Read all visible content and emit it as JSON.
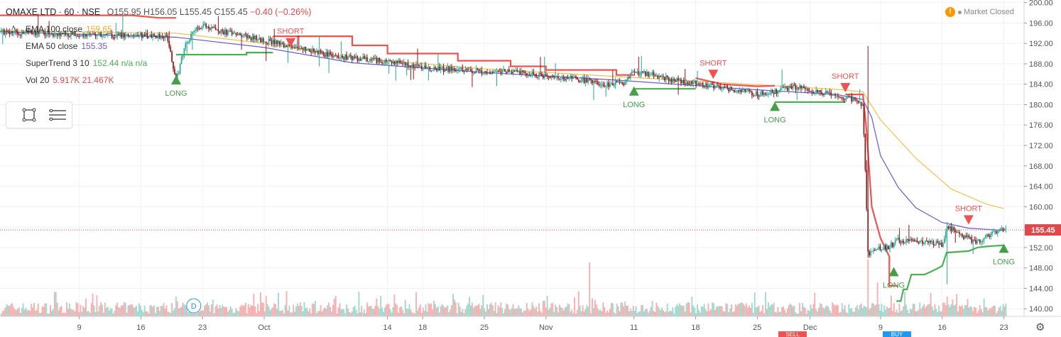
{
  "header": {
    "symbol": "OMAXE LTD · 60 · NSE",
    "ohlc": "O155.95 H156.05 L155.45 C155.45",
    "change": "−0.40 (−0.26%)"
  },
  "indicators": [
    {
      "name": "EMA 100 close",
      "value": "159.65",
      "color": "#f5a623"
    },
    {
      "name": "EMA 50 close",
      "value": "155.35",
      "color": "#6a5acd"
    },
    {
      "name": "SuperTrend 3 10",
      "value": "152.44 n/a n/a",
      "color": "#4caf50"
    },
    {
      "name": "Vol 20",
      "value": "5.917K 21.467K",
      "color": "#e0484b"
    }
  ],
  "market_status": {
    "icon": "!",
    "label": "Market Closed"
  },
  "bottom_tags": {
    "sell": "SELL",
    "buy": "BUY"
  },
  "colors": {
    "up": "#26a69a",
    "down": "#8b1a1a",
    "supertrend_up": "#4caf50",
    "supertrend_down": "#ef5350",
    "ema100": "#f5c04a",
    "ema50": "#6a5acd",
    "vol_up": "#8fd3c8",
    "vol_down": "#f5a3a3",
    "last_price_bg": "#e0484b"
  },
  "chart_data": {
    "type": "candlestick",
    "symbol": "OMAXE LTD",
    "interval": "60",
    "exchange": "NSE",
    "ylim": [
      138.5,
      200.5
    ],
    "y_ticks": [
      "200.00",
      "196.00",
      "192.00",
      "188.00",
      "184.00",
      "180.00",
      "176.00",
      "172.00",
      "168.00",
      "164.00",
      "160.00",
      "156.00",
      "152.00",
      "148.00",
      "144.00",
      "140.00"
    ],
    "x_ticks": [
      {
        "label": "9",
        "x": 9
      },
      {
        "label": "16",
        "x": 16
      },
      {
        "label": "23",
        "x": 23
      },
      {
        "label": "Oct",
        "x": 30
      },
      {
        "label": "14",
        "x": 44
      },
      {
        "label": "18",
        "x": 48
      },
      {
        "label": "25",
        "x": 55
      },
      {
        "label": "Nov",
        "x": 62
      },
      {
        "label": "11",
        "x": 72
      },
      {
        "label": "18",
        "x": 79
      },
      {
        "label": "25",
        "x": 86
      },
      {
        "label": "Dec",
        "x": 92
      },
      {
        "label": "9",
        "x": 100
      },
      {
        "label": "16",
        "x": 107
      },
      {
        "label": "23",
        "x": 114
      }
    ],
    "last_price": "155.45",
    "price_path": [
      [
        0,
        194.2
      ],
      [
        7,
        193.9
      ],
      [
        13,
        193.6
      ],
      [
        19,
        193.5
      ],
      [
        20,
        184.5
      ],
      [
        21,
        191.5
      ],
      [
        22,
        194.5
      ],
      [
        23,
        195.5
      ],
      [
        26,
        194.0
      ],
      [
        30,
        192.6
      ],
      [
        34,
        191.0
      ],
      [
        38,
        189.5
      ],
      [
        44,
        188.5
      ],
      [
        48,
        187.3
      ],
      [
        52,
        186.8
      ],
      [
        55,
        186.5
      ],
      [
        58,
        186.6
      ],
      [
        61,
        185.8
      ],
      [
        64,
        185.3
      ],
      [
        67,
        184.6
      ],
      [
        69,
        184.0
      ],
      [
        71,
        184.4
      ],
      [
        72,
        186.4
      ],
      [
        74,
        186.0
      ],
      [
        76,
        185.0
      ],
      [
        79,
        184.0
      ],
      [
        82,
        183.4
      ],
      [
        86,
        182.0
      ],
      [
        88,
        182.5
      ],
      [
        90,
        183.5
      ],
      [
        92,
        182.8
      ],
      [
        95,
        181.7
      ],
      [
        97,
        181.0
      ],
      [
        98,
        179.8
      ],
      [
        98.6,
        150.5
      ],
      [
        99.5,
        151.8
      ],
      [
        101,
        152.2
      ],
      [
        102,
        153.5
      ],
      [
        104,
        153.2
      ],
      [
        106,
        153.0
      ],
      [
        107,
        152.3
      ],
      [
        107.6,
        156.2
      ],
      [
        109,
        154.5
      ],
      [
        111,
        153.0
      ],
      [
        112,
        154.0
      ],
      [
        113,
        154.8
      ],
      [
        114,
        155.45
      ]
    ],
    "ema100": [
      [
        0,
        194.5
      ],
      [
        20,
        194.0
      ],
      [
        30,
        192.0
      ],
      [
        40,
        189.2
      ],
      [
        55,
        187.0
      ],
      [
        70,
        185.5
      ],
      [
        85,
        184.0
      ],
      [
        95,
        183.0
      ],
      [
        98,
        182.5
      ],
      [
        100,
        177.0
      ],
      [
        104,
        169.5
      ],
      [
        108,
        163.5
      ],
      [
        112,
        160.5
      ],
      [
        114,
        159.65
      ]
    ],
    "ema50": [
      [
        0,
        194.3
      ],
      [
        20,
        193.2
      ],
      [
        30,
        191.2
      ],
      [
        40,
        188.2
      ],
      [
        55,
        186.3
      ],
      [
        70,
        184.8
      ],
      [
        85,
        183.0
      ],
      [
        95,
        182.0
      ],
      [
        98,
        181.0
      ],
      [
        99,
        177.5
      ],
      [
        100,
        170.0
      ],
      [
        102,
        163.8
      ],
      [
        104,
        159.8
      ],
      [
        107,
        156.9
      ],
      [
        110,
        155.8
      ],
      [
        114,
        155.35
      ]
    ],
    "supertrend_segments": [
      {
        "trend": "down",
        "points": [
          [
            0,
            197.5
          ],
          [
            15,
            197.5
          ],
          [
            18,
            197.0
          ],
          [
            20,
            197.0
          ]
        ]
      },
      {
        "trend": "up",
        "points": [
          [
            20,
            189.8
          ],
          [
            28,
            189.8
          ],
          [
            28,
            190.2
          ],
          [
            31,
            190.2
          ]
        ]
      },
      {
        "trend": "down",
        "points": [
          [
            31,
            193.4
          ],
          [
            40,
            193.4
          ],
          [
            40,
            191.6
          ],
          [
            44,
            191.6
          ],
          [
            44,
            190.0
          ],
          [
            52,
            190.0
          ],
          [
            52,
            188.6
          ],
          [
            58,
            188.6
          ],
          [
            58,
            187.5
          ],
          [
            62,
            187.5
          ],
          [
            62,
            186.8
          ],
          [
            70,
            186.8
          ],
          [
            70,
            185.8
          ],
          [
            72,
            185.8
          ]
        ]
      },
      {
        "trend": "up",
        "points": [
          [
            72,
            183.1
          ],
          [
            79,
            183.1
          ]
        ]
      },
      {
        "trend": "down",
        "points": [
          [
            79,
            185.2
          ],
          [
            82,
            184.0
          ],
          [
            86,
            183.6
          ],
          [
            88,
            183.7
          ]
        ]
      },
      {
        "trend": "up",
        "points": [
          [
            88,
            180.5
          ],
          [
            96,
            180.5
          ]
        ]
      },
      {
        "trend": "down",
        "points": [
          [
            96,
            182.0
          ],
          [
            98,
            182.0
          ],
          [
            98.4,
            175.0
          ],
          [
            99,
            160.0
          ],
          [
            100,
            153.8
          ],
          [
            101,
            150.2
          ],
          [
            101,
            144.5
          ],
          [
            102,
            144.5
          ]
        ]
      },
      {
        "trend": "up",
        "points": [
          [
            101.8,
            141.5
          ],
          [
            102.3,
            141.5
          ],
          [
            102.6,
            143.8
          ],
          [
            103,
            143.8
          ],
          [
            103.5,
            146.7
          ],
          [
            105,
            146.7
          ],
          [
            106,
            147.5
          ],
          [
            107,
            148.4
          ],
          [
            107.5,
            151.0
          ],
          [
            110,
            151.3
          ],
          [
            111,
            152.0
          ],
          [
            112,
            152.2
          ],
          [
            114,
            152.44
          ]
        ]
      }
    ],
    "signals": [
      {
        "type": "LONG",
        "x": 20,
        "y": 184.8
      },
      {
        "type": "SHORT",
        "x": 33,
        "y": 192.2
      },
      {
        "type": "LONG",
        "x": 72,
        "y": 182.6
      },
      {
        "type": "SHORT",
        "x": 81,
        "y": 186.0
      },
      {
        "type": "LONG",
        "x": 88,
        "y": 179.6
      },
      {
        "type": "SHORT",
        "x": 96,
        "y": 183.4
      },
      {
        "type": "LONG",
        "x": 101.5,
        "y": 147.2
      },
      {
        "type": "SHORT",
        "x": 110,
        "y": 157.5
      },
      {
        "type": "LONG",
        "x": 114,
        "y": 151.8
      }
    ],
    "volume_spikes": [
      {
        "x": 20,
        "v": 0.35
      },
      {
        "x": 67,
        "v": 0.95
      },
      {
        "x": 98.6,
        "v": 1.0
      },
      {
        "x": 99.7,
        "v": 0.6
      },
      {
        "x": 107.6,
        "v": 0.35
      }
    ],
    "date_marker": {
      "label": "D",
      "x": 22
    }
  }
}
